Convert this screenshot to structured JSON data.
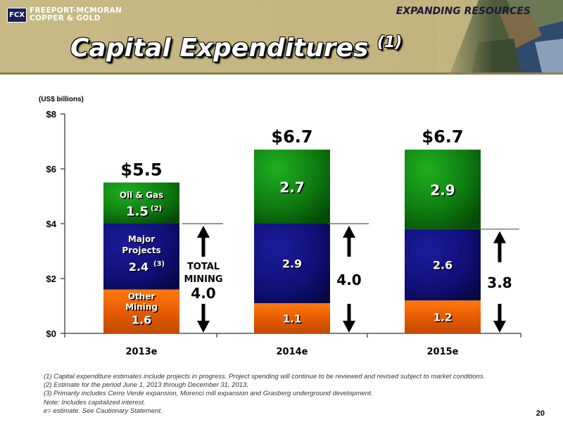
{
  "header": {
    "logo_mark": "FCX",
    "logo_line1": "FREEPORT-MCMORAN",
    "logo_line2": "COPPER & GOLD",
    "section": "EXPANDING RESOURCES",
    "title": "Capital Expenditures",
    "title_sup": "(1)"
  },
  "units_label": "(US$ billions)",
  "chart_data": {
    "type": "bar",
    "stacked": true,
    "categories": [
      "2013e",
      "2014e",
      "2015e"
    ],
    "ylim": [
      0,
      8
    ],
    "yticks": [
      0,
      2,
      4,
      6,
      8
    ],
    "ytick_labels": [
      "$0",
      "$2",
      "$4",
      "$6",
      "$8"
    ],
    "grid": false,
    "legend": "none",
    "series": [
      {
        "key": "other",
        "color": "#e65c00",
        "values": [
          1.6,
          1.1,
          1.2
        ],
        "labels": [
          "1.6",
          "1.1",
          "1.2"
        ]
      },
      {
        "key": "major",
        "color": "#101078",
        "values": [
          2.4,
          2.9,
          2.6
        ],
        "labels": [
          "2.4",
          "2.9",
          "2.6"
        ]
      },
      {
        "key": "oilgas",
        "color": "#0e7a10",
        "values": [
          1.5,
          2.7,
          2.9
        ],
        "labels": [
          "1.5",
          "2.7",
          "2.9"
        ]
      }
    ],
    "totals": [
      "$5.5",
      "$6.7",
      "$6.7"
    ],
    "inline_labels": {
      "oilgas": "Oil & Gas",
      "oilgas_sup": "(2)",
      "major_1": "Major",
      "major_2": "Projects",
      "major_sup": "(3)",
      "other_1": "Other",
      "other_2": "Mining"
    },
    "mining_markers": [
      {
        "category_index": 0,
        "label_1": "TOTAL",
        "label_2": "MINING",
        "value_label": "4.0",
        "top": 4.0
      },
      {
        "category_index": 1,
        "value_label": "4.0",
        "top": 4.0
      },
      {
        "category_index": 2,
        "value_label": "3.8",
        "top": 3.8
      }
    ]
  },
  "footnotes": [
    "(1)   Capital expenditure estimates include projects in progress. Project spending will continue to be reviewed and revised subject to market conditions.",
    "(2)   Estimate for the period June 1, 2013 through December 31, 2013.",
    "(3)  Primarily includes Cerro Verde expansion, Morenci mill expansion and Grasberg underground development.",
    "Note: Includes capitalized interest.",
    " e= estimate. See Cautionary Statement."
  ],
  "page_number": "20"
}
